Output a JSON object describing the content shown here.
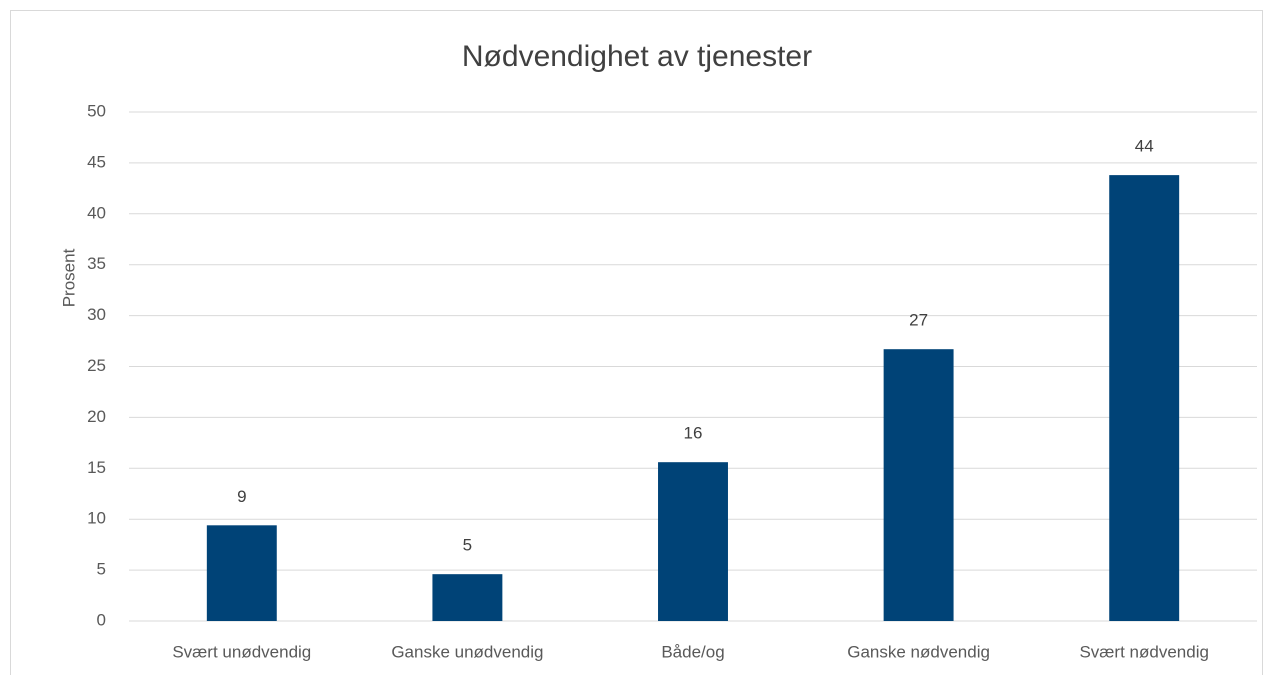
{
  "chart_data": {
    "type": "bar",
    "title": "Nødvendighet av tjenester",
    "y_label": "Prosent",
    "categories": [
      "Svært unødvendig",
      "Ganske unødvendig",
      "Både/og",
      "Ganske nødvendig",
      "Svært nødvendig"
    ],
    "values": [
      9.4,
      4.6,
      15.6,
      26.7,
      43.8
    ],
    "value_labels": [
      "9",
      "5",
      "16",
      "27",
      "44"
    ],
    "color": "#004377",
    "ylim": [
      0,
      50
    ],
    "yticks": [
      0,
      5,
      10,
      15,
      20,
      25,
      30,
      35,
      40,
      45,
      50
    ],
    "grid": true
  }
}
